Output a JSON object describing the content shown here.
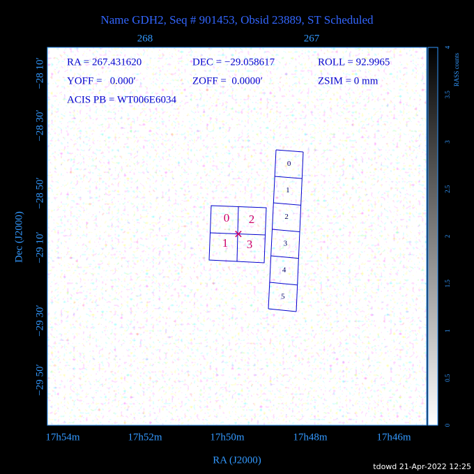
{
  "title": "Name GDH2, Seq # 901453, Obsid 23889, ST Scheduled",
  "top_axis": {
    "ticks": [
      "268",
      "267"
    ]
  },
  "left_axis": {
    "label": "Dec (J2000)",
    "ticks": [
      "−28 10′",
      "−28 30′",
      "−28 50′",
      "−29 10′",
      "−29 30′",
      "−29 50′"
    ]
  },
  "bottom_axis": {
    "label": "RA (J2000)",
    "ticks": [
      "17h54m",
      "17h52m",
      "17h50m",
      "17h48m",
      "17h46m"
    ]
  },
  "colorbar": {
    "label": "RASS counts",
    "ticks": [
      "0",
      "0.5",
      "1",
      "1.5",
      "2",
      "2.5",
      "3",
      "3.5",
      "4"
    ]
  },
  "info": {
    "ra": "RA = 267.431620",
    "dec": "DEC = −29.058617",
    "roll": "ROLL = 92.9965",
    "yoff": "YOFF =   0.000′",
    "zoff": "ZOFF =  0.0000′",
    "zsim": "ZSIM = 0 mm",
    "acis": "ACIS PB = WT006E6034"
  },
  "acis_i": {
    "labels": [
      "0",
      "2",
      "1",
      "3"
    ]
  },
  "acis_s": {
    "labels": [
      "0",
      "1",
      "2",
      "3",
      "4",
      "5"
    ]
  },
  "footer": "tdowd 21-Apr-2022 12:25"
}
